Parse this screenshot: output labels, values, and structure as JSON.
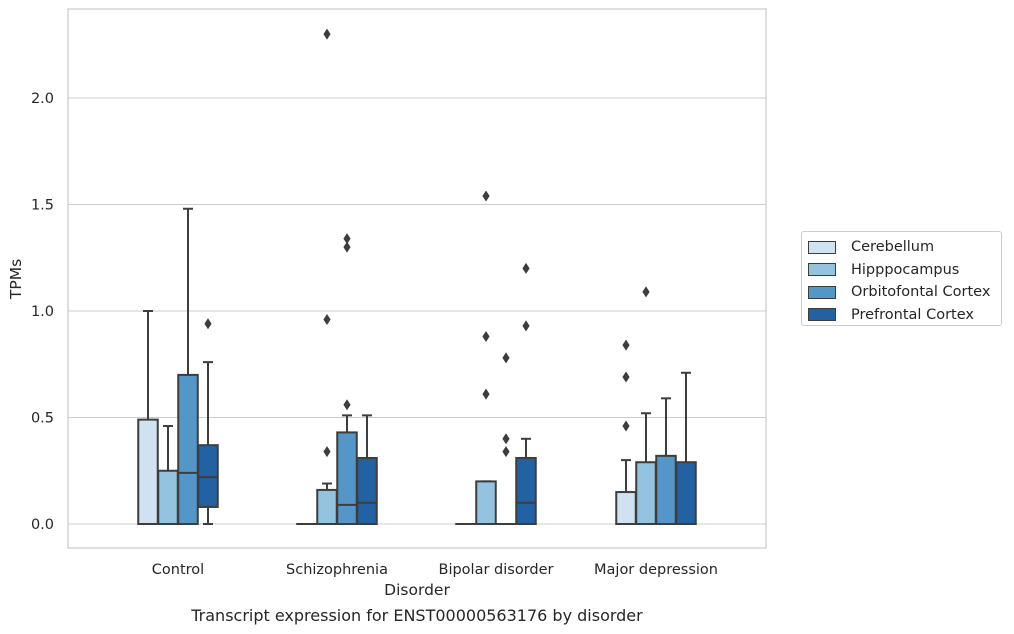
{
  "chart_data": {
    "type": "box",
    "xlabel": "Disorder",
    "ylabel": "TPMs",
    "ylim": [
      -0.11,
      2.42
    ],
    "yticks": [
      0.0,
      0.5,
      1.0,
      1.5,
      2.0
    ],
    "ytick_labels": [
      "0.0",
      "0.5",
      "1.0",
      "1.5",
      "2.0"
    ],
    "grid": "horizontal",
    "legend_position": "right",
    "categories": [
      "Control",
      "Schizophrenia",
      "Bipolar disorder",
      "Major depression"
    ],
    "series": [
      {
        "name": "Cerebellum",
        "color": "#d0e1f1",
        "boxes": [
          {
            "whislo": 0.0,
            "q1": 0.0,
            "med": 0.0,
            "q3": 0.49,
            "whishi": 1.0,
            "fliers": []
          },
          {
            "whislo": 0.0,
            "q1": 0.0,
            "med": 0.0,
            "q3": 0.0,
            "whishi": 0.0,
            "fliers": []
          },
          {
            "whislo": 0.0,
            "q1": 0.0,
            "med": 0.0,
            "q3": 0.0,
            "whishi": 0.0,
            "fliers": []
          },
          {
            "whislo": 0.0,
            "q1": 0.0,
            "med": 0.0,
            "q3": 0.15,
            "whishi": 0.3,
            "fliers": [
              0.46,
              0.69,
              0.84
            ]
          }
        ]
      },
      {
        "name": "Hipppocampus",
        "color": "#93c3df",
        "boxes": [
          {
            "whislo": 0.0,
            "q1": 0.0,
            "med": 0.0,
            "q3": 0.25,
            "whishi": 0.46,
            "fliers": []
          },
          {
            "whislo": 0.0,
            "q1": 0.0,
            "med": 0.0,
            "q3": 0.16,
            "whishi": 0.19,
            "fliers": [
              0.34,
              0.96,
              2.3
            ]
          },
          {
            "whislo": 0.0,
            "q1": 0.0,
            "med": 0.0,
            "q3": 0.2,
            "whishi": 0.2,
            "fliers": [
              0.61,
              0.88,
              1.54
            ]
          },
          {
            "whislo": 0.0,
            "q1": 0.0,
            "med": 0.0,
            "q3": 0.29,
            "whishi": 0.52,
            "fliers": [
              1.09
            ]
          }
        ]
      },
      {
        "name": "Orbitofontal Cortex",
        "color": "#5496c7",
        "boxes": [
          {
            "whislo": 0.0,
            "q1": 0.0,
            "med": 0.24,
            "q3": 0.7,
            "whishi": 1.48,
            "fliers": []
          },
          {
            "whislo": 0.0,
            "q1": 0.0,
            "med": 0.09,
            "q3": 0.43,
            "whishi": 0.51,
            "fliers": [
              0.56,
              1.3,
              1.34
            ]
          },
          {
            "whislo": 0.0,
            "q1": 0.0,
            "med": 0.0,
            "q3": 0.0,
            "whishi": 0.0,
            "fliers": [
              0.34,
              0.4,
              0.78
            ]
          },
          {
            "whislo": 0.0,
            "q1": 0.0,
            "med": 0.0,
            "q3": 0.32,
            "whishi": 0.59,
            "fliers": []
          }
        ]
      },
      {
        "name": "Prefrontal Cortex",
        "color": "#2362a2",
        "boxes": [
          {
            "whislo": 0.0,
            "q1": 0.08,
            "med": 0.22,
            "q3": 0.37,
            "whishi": 0.76,
            "fliers": [
              0.94
            ]
          },
          {
            "whislo": 0.0,
            "q1": 0.0,
            "med": 0.1,
            "q3": 0.31,
            "whishi": 0.51,
            "fliers": []
          },
          {
            "whislo": 0.0,
            "q1": 0.0,
            "med": 0.1,
            "q3": 0.31,
            "whishi": 0.4,
            "fliers": [
              0.93,
              1.2
            ]
          },
          {
            "whislo": 0.0,
            "q1": 0.0,
            "med": 0.0,
            "q3": 0.29,
            "whishi": 0.71,
            "fliers": []
          }
        ]
      }
    ]
  },
  "caption": "Transcript expression for ENST00000563176 by disorder",
  "legend": {
    "items": [
      {
        "label": "Cerebellum"
      },
      {
        "label": "Hipppocampus"
      },
      {
        "label": "Orbitofontal Cortex"
      },
      {
        "label": "Prefrontal Cortex"
      }
    ]
  }
}
